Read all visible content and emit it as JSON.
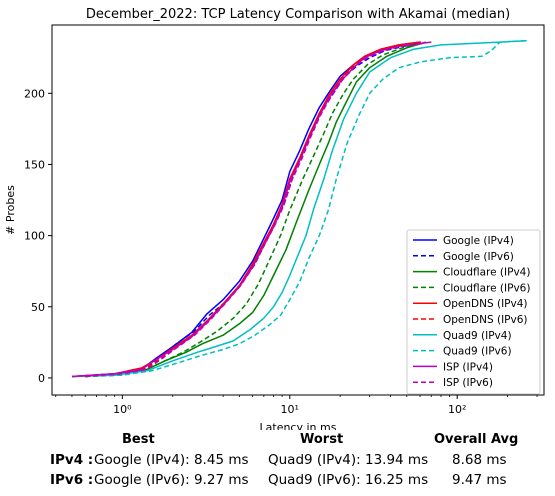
{
  "chart_data": {
    "type": "line",
    "title": "December_2022: TCP Latency Comparison with Akamai (median)",
    "xlabel": "Latency in ms",
    "ylabel": "# Probes",
    "xscale": "log",
    "xlim": [
      0.38,
      330
    ],
    "ylim": [
      -12,
      248
    ],
    "xticks": [
      {
        "value": 1,
        "label": "10⁰"
      },
      {
        "value": 10,
        "label": "10¹"
      },
      {
        "value": 100,
        "label": "10²"
      }
    ],
    "yticks": [
      0,
      50,
      100,
      150,
      200
    ],
    "grid": false,
    "legend_position": "lower-right",
    "series": [
      {
        "name": "Google (IPv4)",
        "color": "#0000ff",
        "dash": "solid",
        "x": [
          0.5,
          0.9,
          1.3,
          1.6,
          2.0,
          2.6,
          3.2,
          4.0,
          5.0,
          6.0,
          7.0,
          8.0,
          9.0,
          10.0,
          11.5,
          13.0,
          15.0,
          17.0,
          20.0,
          24.0,
          28.0,
          35.0,
          45.0,
          60.0
        ],
        "y": [
          1,
          3,
          6,
          14,
          22,
          32,
          45,
          55,
          68,
          82,
          98,
          112,
          125,
          145,
          160,
          175,
          190,
          200,
          212,
          220,
          226,
          231,
          234,
          236
        ]
      },
      {
        "name": "Google (IPv6)",
        "color": "#0000ff",
        "dash": "dashed",
        "x": [
          0.6,
          1.0,
          1.4,
          1.7,
          2.1,
          2.7,
          3.3,
          4.2,
          5.2,
          6.2,
          7.2,
          8.3,
          9.3,
          10.5,
          12.0,
          13.5,
          15.5,
          18.0,
          21.0,
          25.0,
          30.0,
          37.0,
          48.0,
          62.0
        ],
        "y": [
          1,
          3,
          7,
          15,
          24,
          33,
          44,
          54,
          67,
          80,
          96,
          110,
          123,
          142,
          158,
          172,
          188,
          199,
          211,
          219,
          225,
          230,
          233,
          235
        ]
      },
      {
        "name": "Cloudflare (IPv4)",
        "color": "#008000",
        "dash": "solid",
        "x": [
          0.5,
          0.9,
          1.4,
          1.8,
          2.4,
          3.0,
          4.0,
          5.0,
          6.0,
          7.0,
          8.0,
          9.5,
          11.0,
          13.0,
          15.0,
          17.0,
          19.0,
          22.0,
          25.0,
          30.0,
          38.0,
          50.0,
          65.0
        ],
        "y": [
          1,
          2,
          6,
          12,
          18,
          24,
          30,
          38,
          46,
          58,
          72,
          90,
          110,
          132,
          150,
          165,
          180,
          195,
          208,
          218,
          226,
          232,
          236
        ]
      },
      {
        "name": "Cloudflare (IPv6)",
        "color": "#008000",
        "dash": "dashed",
        "x": [
          0.6,
          1.0,
          1.4,
          1.8,
          2.3,
          2.9,
          3.7,
          4.6,
          5.5,
          6.5,
          7.5,
          8.8,
          10.0,
          12.0,
          14.0,
          16.0,
          18.0,
          21.0,
          24.0,
          29.0,
          36.0,
          47.0,
          62.0
        ],
        "y": [
          1,
          2,
          6,
          12,
          18,
          25,
          33,
          42,
          52,
          66,
          82,
          100,
          118,
          140,
          157,
          172,
          186,
          200,
          210,
          220,
          227,
          232,
          235
        ]
      },
      {
        "name": "OpenDNS (IPv4)",
        "color": "#ff0000",
        "dash": "solid",
        "x": [
          0.5,
          0.9,
          1.3,
          1.6,
          2.0,
          2.6,
          3.2,
          4.0,
          5.0,
          6.0,
          7.0,
          8.0,
          9.0,
          10.0,
          11.5,
          13.0,
          15.0,
          17.0,
          20.0,
          24.0,
          28.0,
          35.0,
          45.0,
          60.0
        ],
        "y": [
          1,
          3,
          7,
          13,
          21,
          30,
          40,
          52,
          65,
          80,
          95,
          108,
          122,
          140,
          155,
          170,
          186,
          198,
          210,
          220,
          226,
          231,
          234,
          236
        ]
      },
      {
        "name": "OpenDNS (IPv6)",
        "color": "#ff0000",
        "dash": "dashed",
        "x": [
          0.6,
          1.0,
          1.4,
          1.7,
          2.1,
          2.7,
          3.3,
          4.1,
          5.1,
          6.1,
          7.1,
          8.2,
          9.2,
          10.3,
          11.8,
          13.3,
          15.3,
          17.5,
          20.5,
          24.5,
          29.0,
          36.0,
          46.0,
          61.0
        ],
        "y": [
          1,
          3,
          7,
          14,
          22,
          31,
          41,
          53,
          66,
          81,
          96,
          110,
          123,
          141,
          156,
          171,
          187,
          199,
          211,
          220,
          226,
          231,
          234,
          236
        ]
      },
      {
        "name": "Quad9 (IPv4)",
        "color": "#00bfbf",
        "dash": "solid",
        "x": [
          0.5,
          0.9,
          1.4,
          2.0,
          2.8,
          3.6,
          4.6,
          5.8,
          7.0,
          8.0,
          9.0,
          10.0,
          11.0,
          12.5,
          14.0,
          16.0,
          18.0,
          21.0,
          25.0,
          30.0,
          40.0,
          55.0,
          80.0,
          120.0,
          180.0,
          260.0
        ],
        "y": [
          1,
          2,
          5,
          12,
          18,
          22,
          26,
          34,
          42,
          50,
          60,
          72,
          84,
          100,
          120,
          140,
          160,
          182,
          200,
          215,
          225,
          231,
          234,
          235,
          236,
          237
        ]
      },
      {
        "name": "Quad9 (IPv6)",
        "color": "#00bfbf",
        "dash": "dashed",
        "x": [
          0.6,
          1.0,
          1.5,
          2.2,
          3.0,
          4.0,
          5.0,
          6.2,
          7.5,
          8.8,
          10.0,
          11.5,
          13.0,
          15.0,
          17.0,
          19.0,
          22.0,
          26.0,
          30.0,
          36.0,
          45.0,
          60.0,
          90.0,
          140.0,
          160.0,
          180.0,
          260.0
        ],
        "y": [
          1,
          2,
          5,
          11,
          16,
          20,
          24,
          30,
          37,
          44,
          55,
          68,
          84,
          100,
          118,
          140,
          165,
          185,
          200,
          210,
          218,
          222,
          225,
          226,
          230,
          236,
          237
        ]
      },
      {
        "name": "ISP (IPv4)",
        "color": "#bf00bf",
        "dash": "solid",
        "x": [
          0.5,
          0.9,
          1.3,
          1.6,
          2.0,
          2.6,
          3.2,
          4.0,
          5.0,
          6.0,
          7.0,
          8.0,
          9.0,
          10.0,
          11.5,
          13.0,
          15.0,
          17.0,
          20.0,
          24.0,
          28.0,
          35.0,
          45.0,
          60.0,
          70.0
        ],
        "y": [
          1,
          3,
          6,
          13,
          20,
          29,
          39,
          51,
          64,
          78,
          93,
          106,
          120,
          138,
          153,
          168,
          184,
          196,
          208,
          218,
          225,
          230,
          233,
          235,
          236
        ]
      },
      {
        "name": "ISP (IPv6)",
        "color": "#bf00bf",
        "dash": "dashed",
        "x": [
          0.6,
          1.0,
          1.4,
          1.7,
          2.1,
          2.7,
          3.3,
          4.1,
          5.1,
          6.1,
          7.1,
          8.2,
          9.2,
          10.3,
          11.8,
          13.3,
          15.3,
          17.5,
          20.5,
          24.5,
          29.0,
          36.0,
          46.0,
          61.0
        ],
        "y": [
          1,
          3,
          6,
          13,
          21,
          30,
          40,
          52,
          65,
          79,
          94,
          108,
          121,
          139,
          154,
          169,
          185,
          197,
          209,
          219,
          225,
          230,
          233,
          235
        ]
      }
    ]
  },
  "summary": {
    "headers": {
      "best": "Best",
      "worst": "Worst",
      "avg": "Overall Avg"
    },
    "rows": [
      {
        "label": "IPv4 :",
        "best": "Google (IPv4): 8.45 ms",
        "worst": "Quad9 (IPv4): 13.94 ms",
        "avg": "8.68 ms"
      },
      {
        "label": "IPv6 :",
        "best": "Google (IPv6): 9.27 ms",
        "worst": "Quad9 (IPv6): 16.25 ms",
        "avg": "9.47 ms"
      }
    ]
  }
}
